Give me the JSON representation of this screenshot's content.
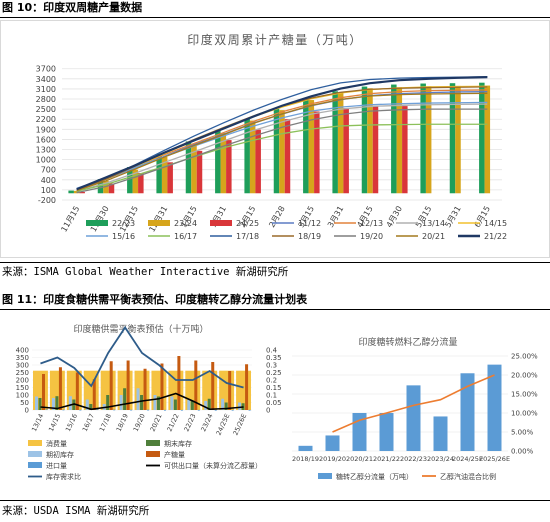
{
  "fig10": {
    "header": "图 10：印度双周糖产量数据",
    "source": "来源：ISMA Global Weather Interactive 新湖研究所",
    "chart_data": {
      "type": "bar+line",
      "title": "印度双周累计产糖量（万吨）",
      "categories": [
        "11月15",
        "11月30",
        "12月15",
        "12月31",
        "1月15",
        "1月31",
        "2月15",
        "2月28",
        "3月15",
        "3月31",
        "4月15",
        "4月30",
        "5月15",
        "5月31",
        "6月15"
      ],
      "yticks": [
        -200,
        100,
        400,
        700,
        1000,
        1300,
        1600,
        1900,
        2200,
        2500,
        2800,
        3100,
        3400,
        3700
      ],
      "ylim": [
        -200,
        3900
      ],
      "bars": [
        {
          "name": "22/23",
          "color": "#1e9e5a",
          "values": [
            80,
            420,
            780,
            1180,
            1540,
            1860,
            2210,
            2530,
            2820,
            3030,
            3170,
            3230,
            3260,
            3270,
            3285
          ]
        },
        {
          "name": "23/24",
          "color": "#d6a51c",
          "values": [
            70,
            370,
            700,
            1080,
            1460,
            1790,
            2160,
            2470,
            2770,
            2990,
            3120,
            3150,
            3180,
            3190,
            3200
          ]
        },
        {
          "name": "24/25",
          "color": "#d9363a",
          "values": [
            40,
            290,
            600,
            920,
            1260,
            1580,
            1890,
            2200,
            2430,
            2530,
            2580,
            2590,
            null,
            null,
            null
          ]
        }
      ],
      "lines": [
        {
          "name": "11/12",
          "color": "#5b7bc4",
          "values": [
            120,
            420,
            760,
            1100,
            1450,
            1750,
            2080,
            2350,
            2600,
            2780,
            2900,
            2960,
            2990,
            3010,
            3020
          ]
        },
        {
          "name": "12/13",
          "color": "#e2823b",
          "values": [
            130,
            440,
            790,
            1150,
            1480,
            1800,
            2130,
            2420,
            2660,
            2840,
            2960,
            3020,
            3050,
            3060,
            3070
          ]
        },
        {
          "name": "13/14",
          "color": "#b0b0b0",
          "values": [
            60,
            300,
            600,
            920,
            1230,
            1550,
            1860,
            2120,
            2350,
            2500,
            2580,
            2610,
            2630,
            2640,
            2650
          ]
        },
        {
          "name": "14/15",
          "color": "#f2c12e",
          "values": [
            110,
            420,
            790,
            1180,
            1560,
            1910,
            2270,
            2560,
            2810,
            2980,
            3080,
            3130,
            3160,
            3170,
            3180
          ]
        },
        {
          "name": "15/16",
          "color": "#6fa0d8",
          "values": [
            150,
            440,
            770,
            1090,
            1400,
            1700,
            1990,
            2240,
            2440,
            2560,
            2630,
            2660,
            2680,
            2690,
            2700
          ]
        },
        {
          "name": "16/17",
          "color": "#8cc05a",
          "values": [
            60,
            260,
            530,
            800,
            1080,
            1350,
            1570,
            1770,
            1910,
            2000,
            2030,
            2040,
            2050,
            2050,
            2050
          ]
        },
        {
          "name": "17/18",
          "color": "#2f5f9e",
          "values": [
            100,
            440,
            850,
            1280,
            1700,
            2090,
            2460,
            2790,
            3080,
            3280,
            3380,
            3420,
            3440,
            3450,
            3460
          ]
        },
        {
          "name": "18/19",
          "color": "#9a6a2a",
          "values": [
            90,
            420,
            810,
            1210,
            1600,
            1950,
            2290,
            2590,
            2830,
            3000,
            3090,
            3120,
            3140,
            3150,
            3160
          ]
        },
        {
          "name": "19/20",
          "color": "#7f7f7f",
          "values": [
            20,
            200,
            480,
            780,
            1090,
            1400,
            1690,
            1960,
            2180,
            2340,
            2440,
            2480,
            2500,
            2500,
            2500
          ]
        },
        {
          "name": "20/21",
          "color": "#a47a1e",
          "values": [
            80,
            370,
            720,
            1080,
            1420,
            1740,
            2070,
            2360,
            2610,
            2790,
            2890,
            2930,
            2950,
            2960,
            2970
          ]
        },
        {
          "name": "21/22",
          "color": "#1f3864",
          "values": [
            120,
            470,
            830,
            1210,
            1570,
            1920,
            2270,
            2600,
            2880,
            3110,
            3270,
            3360,
            3400,
            3430,
            3450
          ]
        }
      ]
    }
  },
  "fig11": {
    "header": "图 11：印度食糖供需平衡表预估、印度糖转乙醇分流量计划表",
    "source": "来源：USDA ISMA 新湖研究所",
    "left": {
      "chart_data": {
        "type": "bar+line",
        "title": "印度糖供需平衡表预估（十万吨）",
        "categories": [
          "13/14",
          "14/15",
          "15/16",
          "16/17",
          "17/18",
          "18/19",
          "19/20",
          "20/21",
          "21/22",
          "22/23",
          "23/24",
          "24/25E",
          "25/26E"
        ],
        "yticks_left": [
          0,
          50,
          100,
          150,
          200,
          250,
          300,
          350,
          400
        ],
        "yticks_right": [
          "0",
          "0.05",
          "0.1",
          "0.15",
          "0.2",
          "0.25",
          "0.3",
          "0.35",
          "0.4"
        ],
        "consumption": [
          262,
          262,
          262,
          262,
          262,
          262,
          262,
          262,
          262,
          262,
          262,
          262,
          262
        ],
        "ending_stock": [
          80,
          92,
          70,
          40,
          100,
          145,
          100,
          90,
          70,
          60,
          75,
          50,
          45
        ],
        "beginning_stock": [
          90,
          80,
          92,
          70,
          40,
          100,
          145,
          100,
          90,
          70,
          60,
          75,
          50
        ],
        "production": [
          240,
          285,
          250,
          205,
          325,
          330,
          275,
          310,
          360,
          330,
          320,
          260,
          305
        ],
        "imports": [
          5,
          3,
          2,
          5,
          3,
          2,
          2,
          1,
          1,
          1,
          1,
          1,
          1
        ],
        "exports": [
          20,
          10,
          40,
          5,
          20,
          40,
          60,
          75,
          110,
          60,
          5,
          10,
          20
        ],
        "ratio": [
          0.31,
          0.35,
          0.28,
          0.16,
          0.38,
          0.55,
          0.38,
          0.3,
          0.2,
          0.2,
          0.26,
          0.18,
          0.15
        ],
        "legend": [
          {
            "name": "消费量",
            "color": "#f5c342"
          },
          {
            "name": "期末库存",
            "color": "#4f7f3b"
          },
          {
            "name": "期初库存",
            "color": "#9dc3e6"
          },
          {
            "name": "产糖量",
            "color": "#c55a11"
          },
          {
            "name": "进口量",
            "color": "#5a9bd5"
          },
          {
            "name": "可供出口量（未算分流乙醇量）",
            "color": "#000000"
          },
          {
            "name": "库存需求比",
            "color": "#2e5c8a"
          }
        ]
      }
    },
    "right": {
      "chart_data": {
        "type": "bar+line",
        "title": "印度糖转燃料乙醇分流量",
        "categories": [
          "2018/19",
          "2019/20",
          "2020/21",
          "2021/22",
          "2022/23",
          "2023/24",
          "2024/25E",
          "2025/26E"
        ],
        "bars": {
          "name": "糖转乙醇分流量（万吨）",
          "color": "#5b9bd5",
          "values": [
            30,
            90,
            220,
            220,
            380,
            200,
            450,
            500
          ]
        },
        "line": {
          "name": "乙醇汽油混合比例",
          "color": "#ed7d31",
          "values": [
            null,
            0.05,
            0.081,
            0.1,
            0.12,
            0.135,
            0.17,
            0.2
          ]
        },
        "ylim_right": [
          0,
          0.25
        ],
        "yticks_right": [
          "0.00%",
          "5.00%",
          "10.00%",
          "15.00%",
          "20.00%",
          "25.00%"
        ]
      }
    }
  }
}
